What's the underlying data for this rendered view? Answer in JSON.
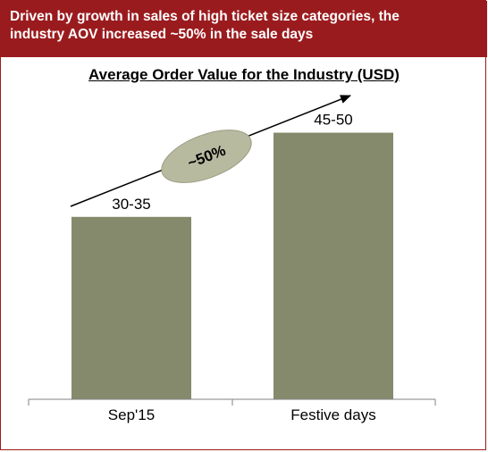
{
  "banner": {
    "line1": "Driven by growth in sales of high ticket size categories, the",
    "line2": "industry AOV increased ~50% in the sale days"
  },
  "chart_data": {
    "type": "bar",
    "title": "Average Order Value for the Industry (USD)",
    "categories": [
      "Sep'15",
      "Festive days"
    ],
    "values": [
      32.5,
      47.5
    ],
    "data_labels": [
      "30-35",
      "45-50"
    ],
    "ylim": [
      0,
      60
    ],
    "grid": false,
    "bar_color": "#868a6c",
    "annotation": {
      "text": "~50%",
      "fill": "#b8baa0"
    }
  },
  "colors": {
    "banner": "#9a1b1e",
    "border": "#9a1b1e"
  }
}
